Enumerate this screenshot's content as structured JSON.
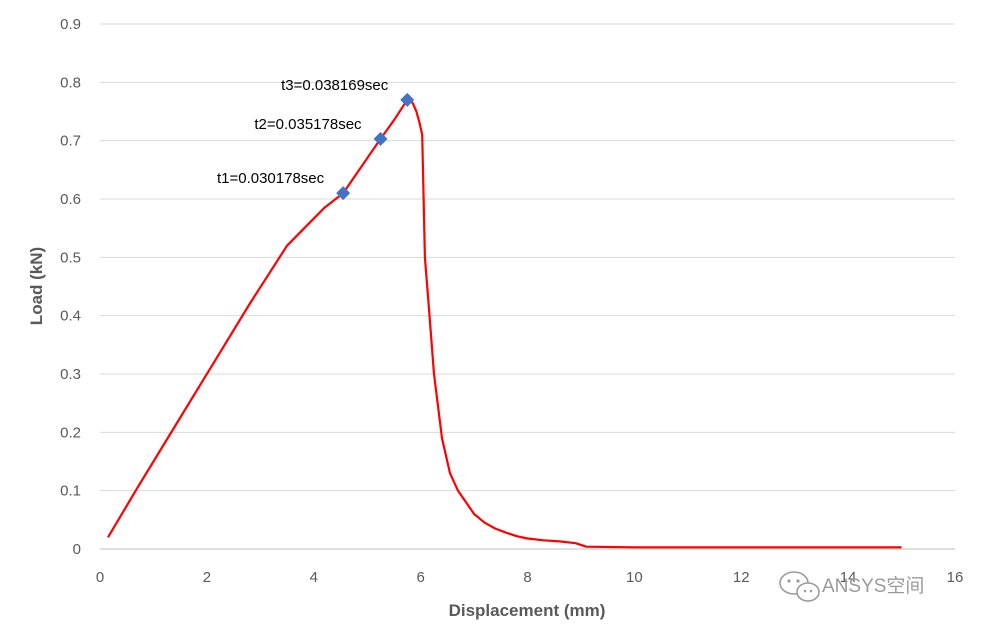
{
  "chart_data": {
    "type": "line",
    "xlabel": "Displacement (mm)",
    "ylabel": "Load (kN)",
    "xlim": [
      0,
      16
    ],
    "ylim": [
      0,
      0.9
    ],
    "xticks": [
      0,
      2,
      4,
      6,
      8,
      10,
      12,
      14,
      16
    ],
    "yticks": [
      0,
      0.1,
      0.2,
      0.3,
      0.4,
      0.5,
      0.6,
      0.7,
      0.8,
      0.9
    ],
    "grid": "horizontal",
    "colors": {
      "line": "#ff0000",
      "marker": "#4472c4",
      "grid": "#d9d9d9",
      "text": "#595959"
    },
    "series": [
      {
        "x": [
          0.15,
          0.7,
          1.4,
          2.1,
          2.8,
          3.5,
          4.2,
          4.55,
          5.0,
          5.25,
          5.5,
          5.75,
          5.85,
          5.92,
          5.98,
          6.03,
          6.08,
          6.15,
          6.25,
          6.4,
          6.55,
          6.7,
          6.85,
          7.0,
          7.2,
          7.4,
          7.6,
          7.8,
          8.0,
          8.3,
          8.6,
          8.9,
          9.1,
          10.0,
          11.0,
          12.0,
          13.0,
          14.0,
          15.0
        ],
        "y": [
          0.02,
          0.105,
          0.21,
          0.315,
          0.42,
          0.52,
          0.585,
          0.61,
          0.67,
          0.703,
          0.735,
          0.77,
          0.765,
          0.75,
          0.73,
          0.71,
          0.5,
          0.42,
          0.3,
          0.19,
          0.13,
          0.1,
          0.08,
          0.06,
          0.045,
          0.035,
          0.028,
          0.022,
          0.018,
          0.015,
          0.013,
          0.01,
          0.004,
          0.003,
          0.003,
          0.003,
          0.003,
          0.003,
          0.003
        ]
      }
    ],
    "markers": [
      {
        "x": 4.55,
        "y": 0.61,
        "label": "t1=0.030178sec"
      },
      {
        "x": 5.25,
        "y": 0.703,
        "label": "t2=0.035178sec"
      },
      {
        "x": 5.75,
        "y": 0.77,
        "label": "t3=0.038169sec"
      }
    ]
  },
  "watermark": {
    "text": "ANSYS空间",
    "icon": "wechat-icon"
  }
}
